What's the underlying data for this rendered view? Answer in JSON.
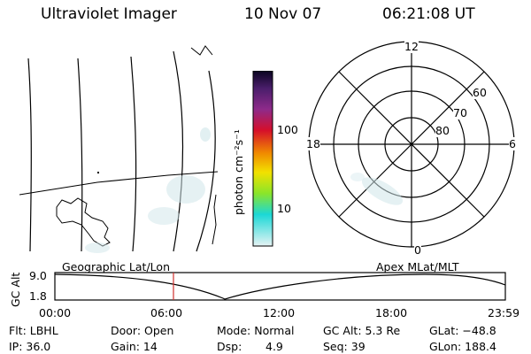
{
  "header": {
    "instrument": "Ultraviolet Imager",
    "date": "10 Nov 07",
    "time": "06:21:08 UT"
  },
  "colorbar": {
    "unit_label": "photon cm⁻²s⁻¹",
    "tick_labels": [
      "100",
      "10"
    ],
    "colors": [
      "#0a0420",
      "#4a1e6b",
      "#8e2a8a",
      "#d60f2a",
      "#f08a00",
      "#f2e100",
      "#8ae52a",
      "#1bd8d6",
      "#e6f3f4"
    ]
  },
  "polar_plot": {
    "mlt_labels": {
      "top": "12",
      "left": "18",
      "right": "6",
      "bottom": "0"
    },
    "lat_labels": [
      "60",
      "70",
      "80"
    ]
  },
  "timeline": {
    "left_caption": "Geographic Lat/Lon",
    "right_caption": "Apex MLat/MLT",
    "y_axis_label": "GC Alt",
    "y_max_label": "9.0",
    "y_min_label": "1.8",
    "time_ticks": [
      "00:00",
      "06:00",
      "12:00",
      "18:00",
      "23:59"
    ],
    "current_time_marker": "06:21"
  },
  "footer": {
    "filter": "Flt: LBHL",
    "ip": "IP: 36.0",
    "door": "Door: Open",
    "gain": "Gain: 14",
    "mode": "Mode: Normal",
    "dsp_label": "Dsp:",
    "dsp_value": "4.9",
    "gc_alt": "GC Alt: 5.3 Re",
    "seq": "Seq: 39",
    "glat": "GLat: −48.8",
    "glon": "GLon: 188.4"
  }
}
